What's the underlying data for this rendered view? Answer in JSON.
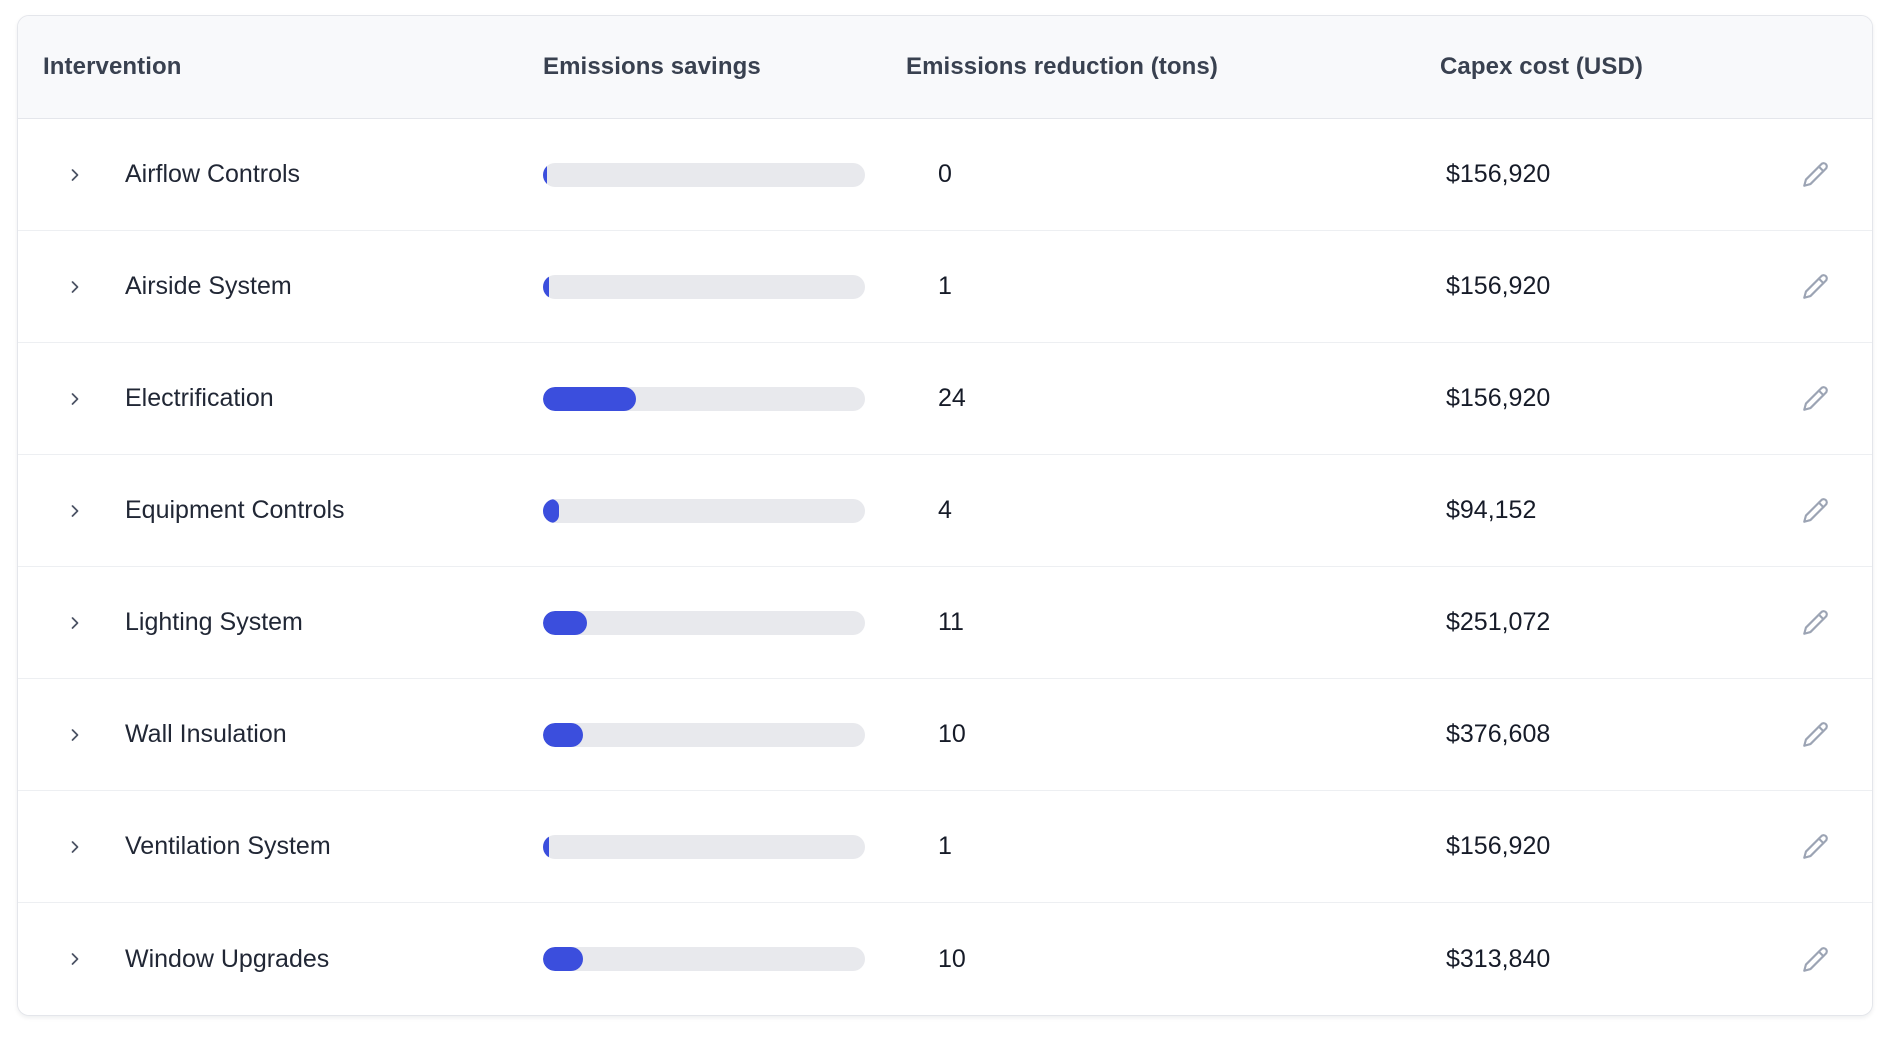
{
  "table": {
    "columns": {
      "intervention": "Intervention",
      "savings": "Emissions savings",
      "reduction": "Emissions reduction (tons)",
      "capex": "Capex cost (USD)"
    },
    "colors": {
      "bar_fill": "#3b4edd",
      "bar_track": "#e8e9ed",
      "header_bg": "#f8f9fb",
      "border": "#e4e6eb"
    },
    "icons": {
      "expand": "chevron-right-icon",
      "edit": "pencil-icon"
    },
    "rows": [
      {
        "name": "Airflow Controls",
        "savings_percent": 1.2,
        "reduction_tons": "0",
        "capex": "$156,920"
      },
      {
        "name": "Airside System",
        "savings_percent": 1.9,
        "reduction_tons": "1",
        "capex": "$156,920"
      },
      {
        "name": "Electrification",
        "savings_percent": 28.9,
        "reduction_tons": "24",
        "capex": "$156,920"
      },
      {
        "name": "Equipment Controls",
        "savings_percent": 5.0,
        "reduction_tons": "4",
        "capex": "$94,152"
      },
      {
        "name": "Lighting System",
        "savings_percent": 13.7,
        "reduction_tons": "11",
        "capex": "$251,072"
      },
      {
        "name": "Wall Insulation",
        "savings_percent": 12.4,
        "reduction_tons": "10",
        "capex": "$376,608"
      },
      {
        "name": "Ventilation System",
        "savings_percent": 1.9,
        "reduction_tons": "1",
        "capex": "$156,920"
      },
      {
        "name": "Window Upgrades",
        "savings_percent": 12.4,
        "reduction_tons": "10",
        "capex": "$313,840"
      }
    ]
  }
}
